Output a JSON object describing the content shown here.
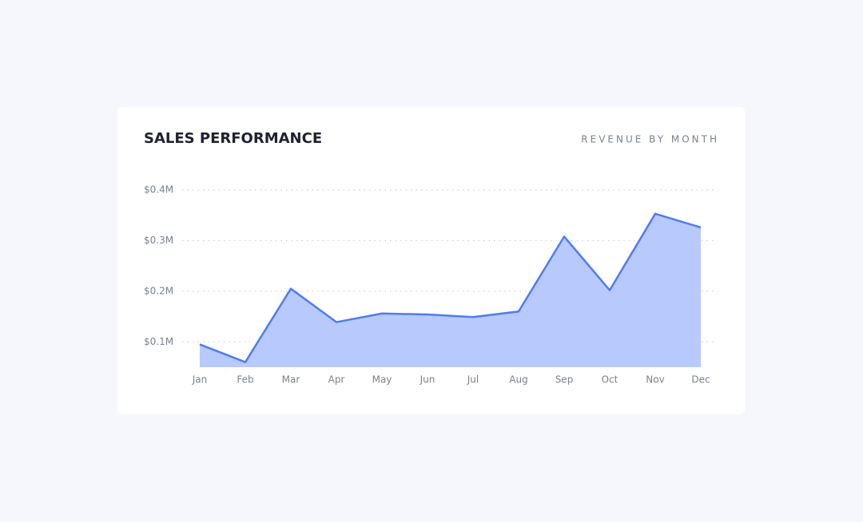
{
  "chart_data": {
    "type": "area",
    "title": "SALES PERFORMANCE",
    "subtitle": "REVENUE BY MONTH",
    "categories": [
      "Jan",
      "Feb",
      "Mar",
      "Apr",
      "May",
      "Jun",
      "Jul",
      "Aug",
      "Sep",
      "Oct",
      "Nov",
      "Dec"
    ],
    "values": [
      95000,
      60000,
      205000,
      139000,
      156000,
      154000,
      149000,
      160000,
      308000,
      202000,
      353000,
      326000
    ],
    "color": "#4f7cf3",
    "fill": "#b8c9fd",
    "ylim": [
      50000,
      400000
    ],
    "yticks": [
      {
        "value": 100000,
        "label": "$0.1M"
      },
      {
        "value": 200000,
        "label": "$0.2M"
      },
      {
        "value": 300000,
        "label": "$0.3M"
      },
      {
        "value": 400000,
        "label": "$0.4M"
      }
    ],
    "grid": true
  }
}
